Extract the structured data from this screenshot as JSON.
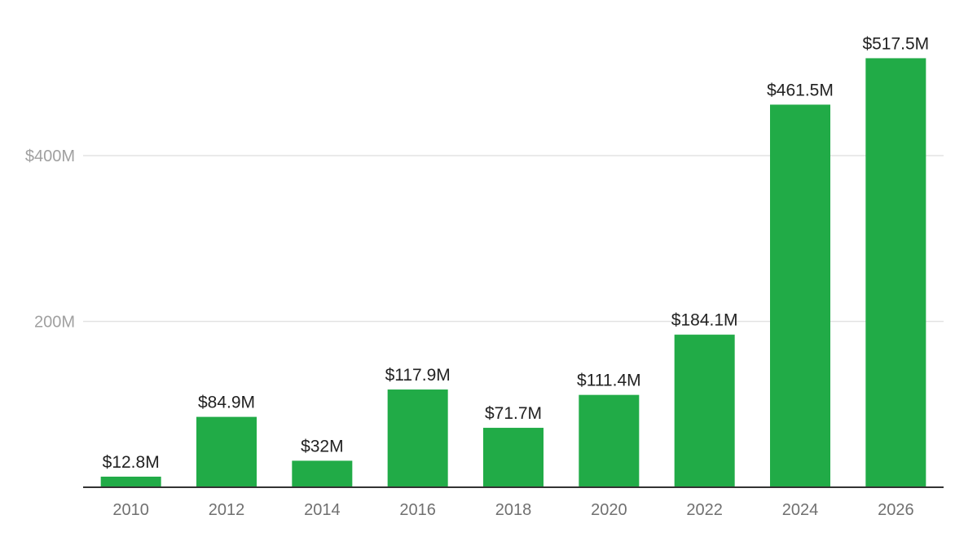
{
  "chart_data": {
    "type": "bar",
    "categories": [
      "2010",
      "2012",
      "2014",
      "2016",
      "2018",
      "2020",
      "2022",
      "2024",
      "2026"
    ],
    "values": [
      12.8,
      84.9,
      32,
      117.9,
      71.7,
      111.4,
      184.1,
      461.5,
      517.5
    ],
    "value_labels": [
      "$12.8M",
      "$84.9M",
      "$32M",
      "$117.9M",
      "$71.7M",
      "$111.4M",
      "$184.1M",
      "$461.5M",
      "$517.5M"
    ],
    "yticks": [
      {
        "value": 200,
        "label": "200M"
      },
      {
        "value": 400,
        "label": "$400M"
      }
    ],
    "ylim": [
      0,
      530
    ],
    "grid": true,
    "legend": "none",
    "bar_color": "#21ab47"
  }
}
